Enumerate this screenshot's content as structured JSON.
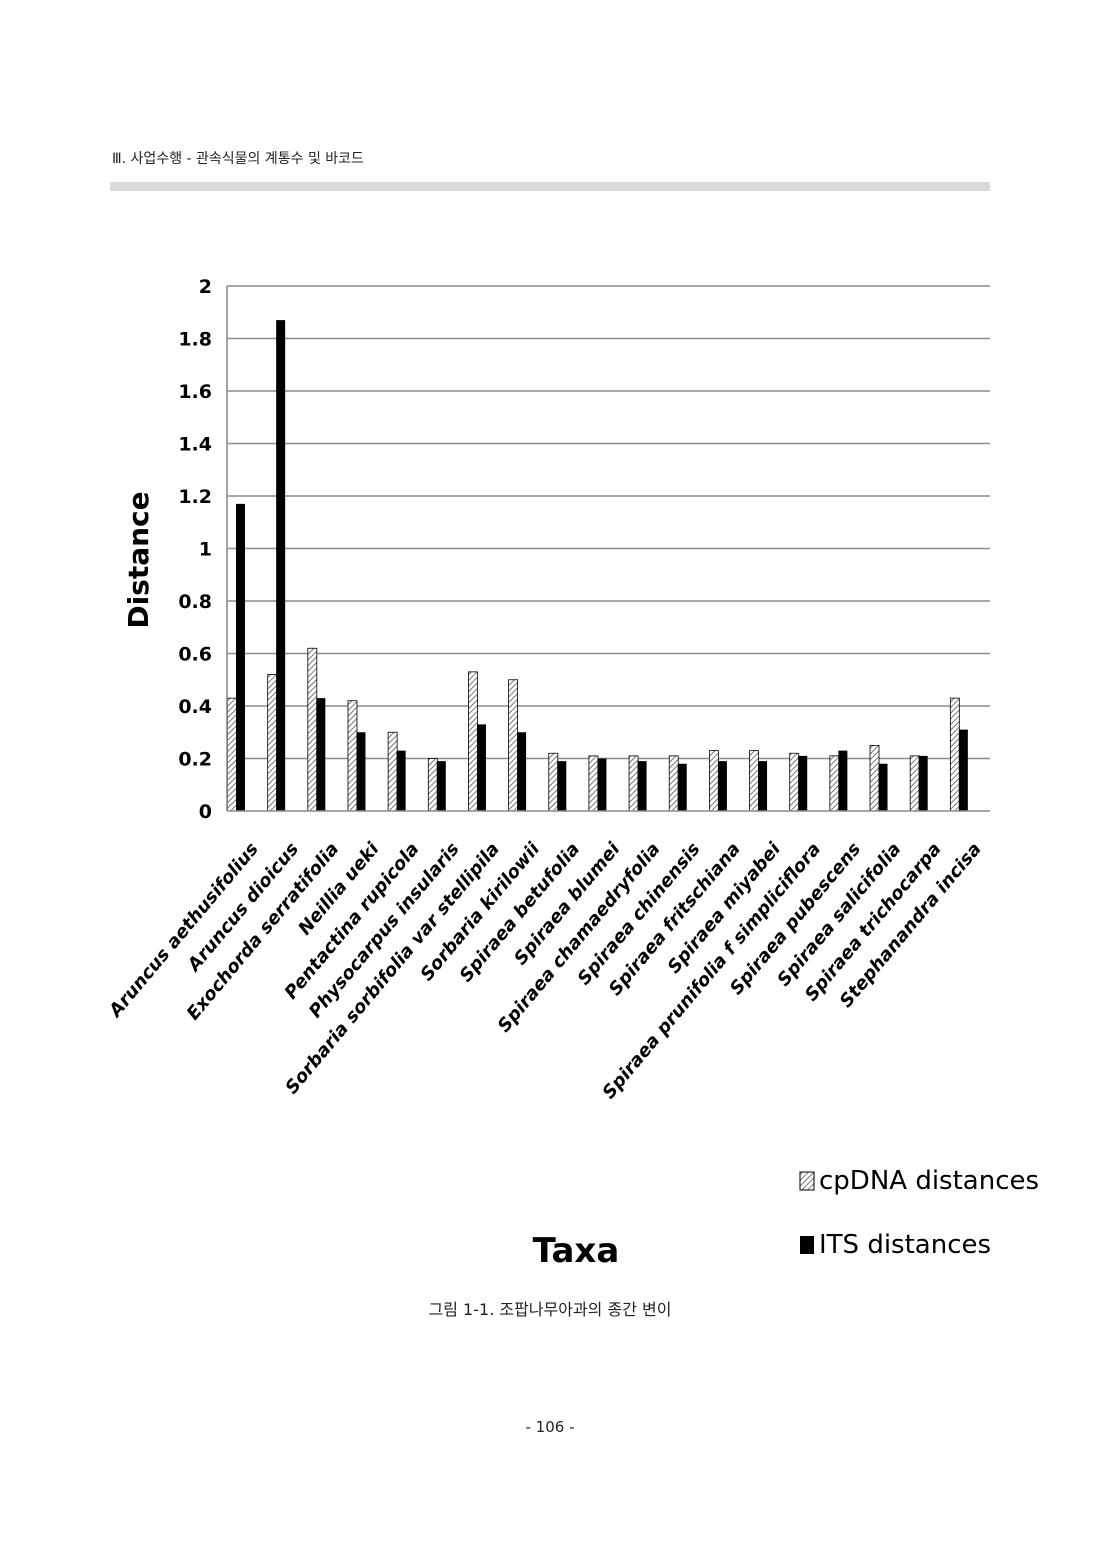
{
  "header": {
    "section_title": "Ⅲ. 사업수행 - 관속식물의 계통수 및 바코드"
  },
  "chart_data": {
    "type": "bar",
    "title": "",
    "xlabel": "Taxa",
    "ylabel": "Distance",
    "ylim": [
      0,
      2
    ],
    "yticks": [
      "0",
      "0.2",
      "0.4",
      "0.6",
      "0.8",
      "1",
      "1.2",
      "1.4",
      "1.6",
      "1.8",
      "2"
    ],
    "grid": true,
    "legend_position": "bottom-right",
    "categories": [
      "Aruncus aethusifolius",
      "Aruncus dioicus",
      "Exochorda serratifolia",
      "Neillia ueki",
      "Pentactina rupicola",
      "Physocarpus insularis",
      "Sorbaria sorbifolia var stellipila",
      "Sorbaria kirilowii",
      "Spiraea betufolia",
      "Spiraea blumei",
      "Spiraea chamaedryfolia",
      "Spiraea chinensis",
      "Spiraea fritschiana",
      "Spiraea miyabei",
      "Spiraea prunifolia f simpliciflora",
      "Spiraea pubescens",
      "Spiraea salicifolia",
      "Spiraea trichocarpa",
      "Stephanandra incisa"
    ],
    "series": [
      {
        "name": "cpDNA distances",
        "color": "#ffffff",
        "pattern": "hatched",
        "values": [
          0.43,
          0.52,
          0.62,
          0.42,
          0.3,
          0.2,
          0.53,
          0.5,
          0.22,
          0.21,
          0.21,
          0.21,
          0.23,
          0.23,
          0.22,
          0.21,
          0.25,
          0.21,
          0.43
        ]
      },
      {
        "name": "ITS distances",
        "color": "#000000",
        "pattern": "solid",
        "values": [
          1.17,
          1.87,
          0.43,
          0.3,
          0.23,
          0.19,
          0.33,
          0.3,
          0.19,
          0.2,
          0.19,
          0.18,
          0.19,
          0.19,
          0.21,
          0.23,
          0.18,
          0.21,
          0.31
        ]
      }
    ]
  },
  "caption": "그림 1-1. 조팝나무아과의 종간 변이",
  "page_number": "- 106 -"
}
